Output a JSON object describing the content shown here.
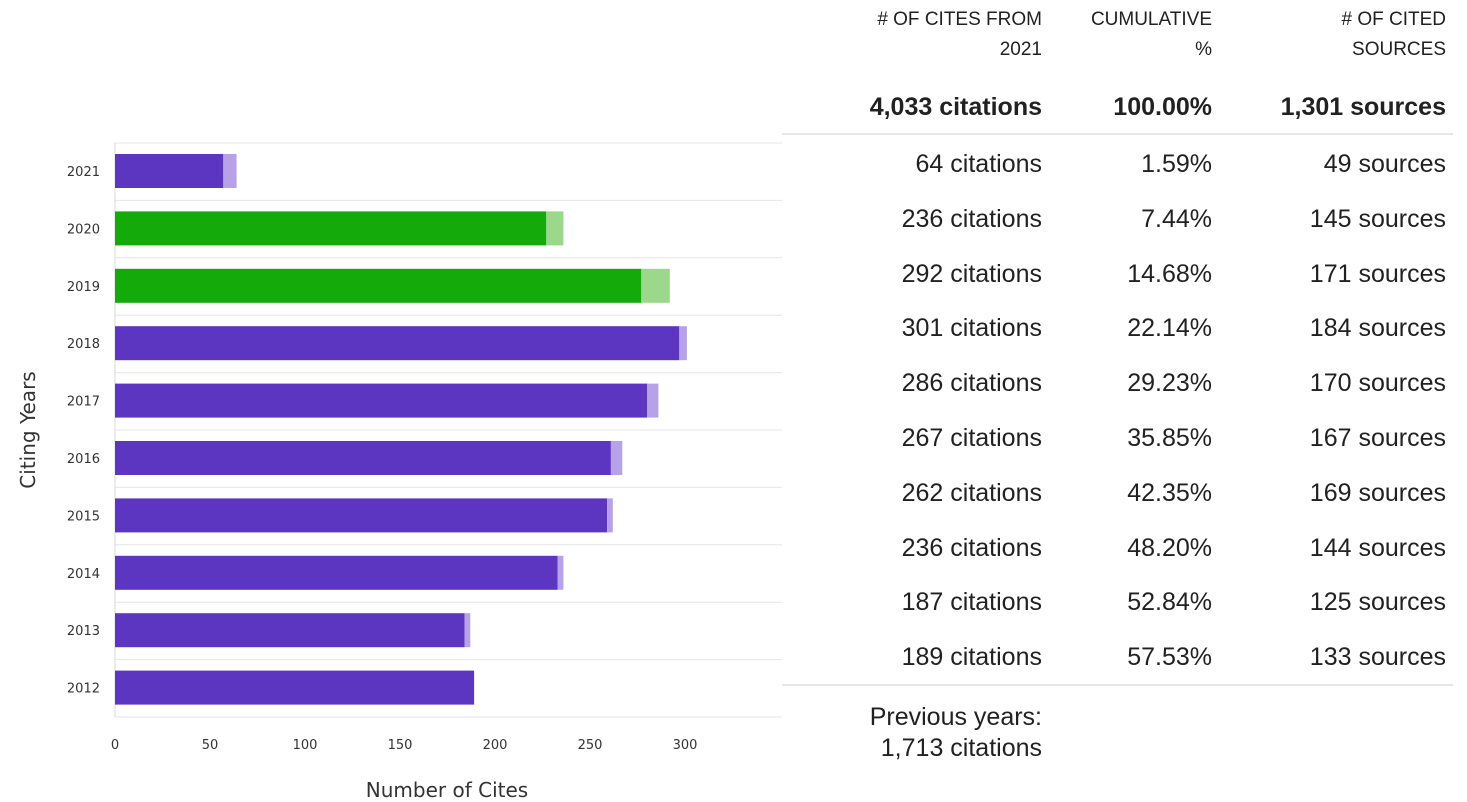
{
  "chart_data": {
    "type": "bar",
    "orientation": "horizontal",
    "stacked": true,
    "categories": [
      "2021",
      "2020",
      "2019",
      "2018",
      "2017",
      "2016",
      "2015",
      "2014",
      "2013",
      "2012"
    ],
    "series": [
      {
        "values": [
          57,
          227,
          277,
          297,
          280,
          261,
          259,
          233,
          184,
          189
        ]
      },
      {
        "values": [
          7,
          9,
          15,
          4,
          6,
          6,
          3,
          3,
          3,
          0
        ]
      }
    ],
    "highlight_categories": [
      "2020",
      "2019"
    ],
    "colors": {
      "main": "#5c35c0",
      "main_light": "#b7a2ea",
      "highlight": "#14aa0a",
      "highlight_light": "#9bd88c",
      "grid": "#e6e6e6",
      "axis": "#d8d8d8"
    },
    "xticks": [
      0,
      50,
      100,
      150,
      200,
      250,
      300
    ],
    "xlim": [
      0,
      350
    ],
    "xlabel": "Number of Cites",
    "ylabel": "Citing Years",
    "grid": true,
    "legend": "none"
  },
  "table": {
    "headers": [
      {
        "lines": [
          "# OF CITES FROM",
          "2021"
        ]
      },
      {
        "lines": [
          "CUMULATIVE",
          "%"
        ]
      },
      {
        "lines": [
          "# OF CITED",
          "SOURCES"
        ]
      }
    ],
    "total": {
      "citations": "4,033 citations",
      "cumulative": "100.00%",
      "sources": "1,301 sources"
    },
    "rows": [
      {
        "citations": "64 citations",
        "cumulative": "1.59%",
        "sources": "49 sources"
      },
      {
        "citations": "236 citations",
        "cumulative": "7.44%",
        "sources": "145 sources"
      },
      {
        "citations": "292 citations",
        "cumulative": "14.68%",
        "sources": "171 sources"
      },
      {
        "citations": "301 citations",
        "cumulative": "22.14%",
        "sources": "184 sources"
      },
      {
        "citations": "286 citations",
        "cumulative": "29.23%",
        "sources": "170 sources"
      },
      {
        "citations": "267 citations",
        "cumulative": "35.85%",
        "sources": "167 sources"
      },
      {
        "citations": "262 citations",
        "cumulative": "42.35%",
        "sources": "169 sources"
      },
      {
        "citations": "236 citations",
        "cumulative": "48.20%",
        "sources": "144 sources"
      },
      {
        "citations": "187 citations",
        "cumulative": "52.84%",
        "sources": "125 sources"
      },
      {
        "citations": "189 citations",
        "cumulative": "57.53%",
        "sources": "133 sources"
      }
    ],
    "previous": {
      "label": "Previous years:",
      "value": "1,713 citations"
    }
  }
}
